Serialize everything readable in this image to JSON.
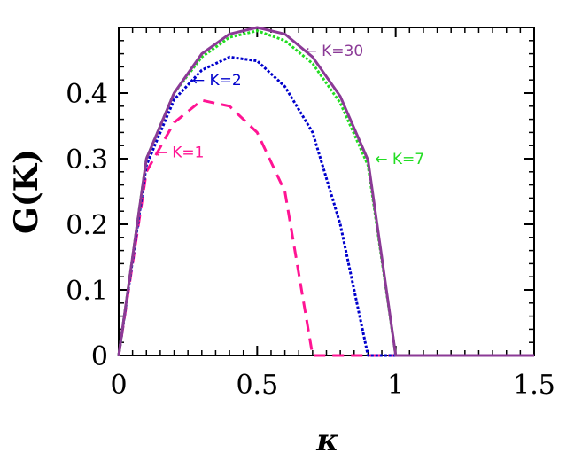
{
  "chart_data": {
    "type": "line",
    "xlabel": "κ",
    "ylabel": "G(K)",
    "xlim": [
      0,
      1.5
    ],
    "ylim": [
      0,
      0.5
    ],
    "xticks": [
      0,
      0.5,
      1,
      1.5
    ],
    "xtick_labels": [
      "0",
      "0.5",
      "1",
      "1.5"
    ],
    "yticks": [
      0,
      0.1,
      0.2,
      0.3,
      0.4
    ],
    "ytick_labels": [
      "0",
      "0.1",
      "0.2",
      "0.3",
      "0.4"
    ],
    "grid": false,
    "legend": "none",
    "series": [
      {
        "name": "K=1",
        "color": "#ff1493",
        "style": "dashed",
        "x": [
          0,
          0.1,
          0.2,
          0.3,
          0.4,
          0.5,
          0.6,
          0.7,
          0.8,
          0.9,
          1.0,
          1.5
        ],
        "y": [
          0,
          0.28,
          0.355,
          0.389,
          0.38,
          0.34,
          0.25,
          0.0,
          0.0,
          0.0,
          0.0,
          0.0
        ]
      },
      {
        "name": "K=2",
        "color": "#0000cc",
        "style": "dotted",
        "x": [
          0,
          0.1,
          0.2,
          0.3,
          0.4,
          0.5,
          0.6,
          0.7,
          0.8,
          0.9,
          1.0,
          1.5
        ],
        "y": [
          0,
          0.29,
          0.39,
          0.435,
          0.455,
          0.449,
          0.41,
          0.34,
          0.2,
          0.0,
          0.0,
          0.0
        ]
      },
      {
        "name": "K=7",
        "color": "#22dd22",
        "style": "dotted",
        "x": [
          0,
          0.1,
          0.2,
          0.3,
          0.4,
          0.5,
          0.6,
          0.7,
          0.8,
          0.9,
          1.0,
          1.5
        ],
        "y": [
          0,
          0.3,
          0.4,
          0.455,
          0.485,
          0.495,
          0.48,
          0.445,
          0.385,
          0.29,
          0.0,
          0.0
        ]
      },
      {
        "name": "K=30",
        "color": "#8b3a96",
        "style": "solid",
        "x": [
          0,
          0.1,
          0.2,
          0.3,
          0.4,
          0.5,
          0.6,
          0.7,
          0.8,
          0.9,
          1.0,
          1.5
        ],
        "y": [
          0,
          0.3,
          0.4,
          0.46,
          0.49,
          0.5,
          0.49,
          0.455,
          0.395,
          0.298,
          0.0,
          0.0
        ]
      }
    ],
    "annotations": [
      {
        "text": "← K=1",
        "series": "K=1",
        "x": 0.13,
        "y": 0.31
      },
      {
        "text": "← K=2",
        "series": "K=2",
        "x": 0.265,
        "y": 0.42
      },
      {
        "text": "← K=7",
        "series": "K=7",
        "x": 0.925,
        "y": 0.3
      },
      {
        "text": "← K=30",
        "series": "K=30",
        "x": 0.67,
        "y": 0.465
      }
    ]
  }
}
